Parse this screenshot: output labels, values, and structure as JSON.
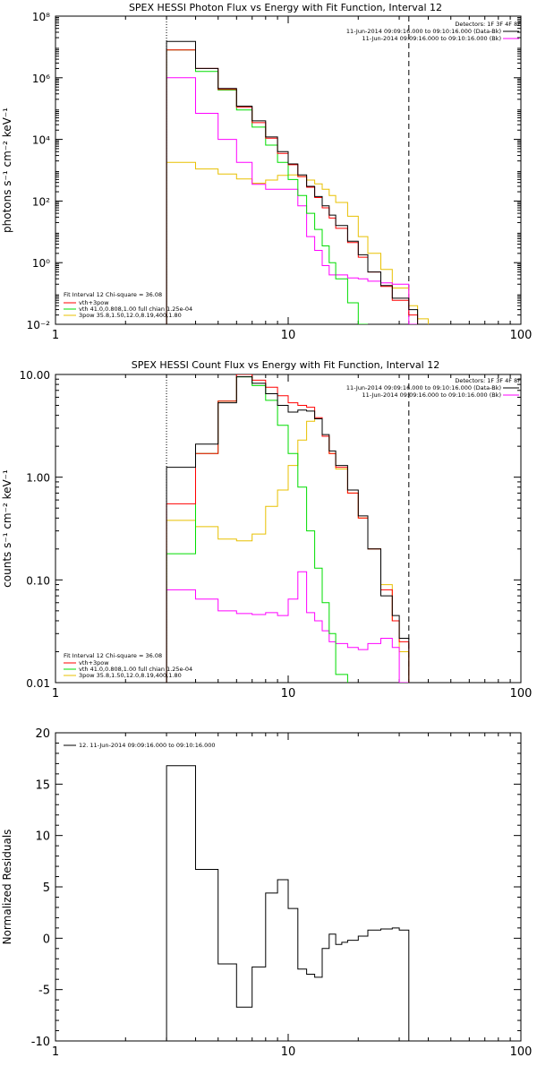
{
  "colors": {
    "black": "#000000",
    "red": "#ff0000",
    "green": "#00dd00",
    "magenta": "#ff00ff",
    "orange": "#e8c000"
  },
  "chart_data": [
    {
      "type": "line",
      "title": "SPEX HESSI Photon Flux vs Energy with Fit Function, Interval 12",
      "ylabel": "photons s⁻¹ cm⁻² keV⁻¹",
      "xlabel": "",
      "x_scale": "log",
      "y_scale": "log",
      "xlim": [
        1,
        100
      ],
      "ylim": [
        0.01,
        100000000
      ],
      "x_ticks": [
        "1",
        "10",
        "100"
      ],
      "y_ticks": [
        "10⁻²",
        "10⁰",
        "10²",
        "10⁴",
        "10⁶",
        "10⁸"
      ],
      "vline_dotted": 3,
      "vline_dashed": 33,
      "legend_header": "Detectors: 1F 3F 4F 8F",
      "legend_top": [
        {
          "label": "11-Jun-2014 09:09:16.000 to 09:10:16.000 (Data-Bk)",
          "color": "#000000"
        },
        {
          "label": "11-Jun-2014 09:09:16.000 to 09:10:16.000 (Bk)",
          "color": "#ff00ff"
        }
      ],
      "legend_fit_header": "Fit Interval 12   Chi-square = 36.08",
      "legend_fit": [
        {
          "label": "vth+3pow",
          "color": "#ff0000"
        },
        {
          "label": "vth 41.0,0.808,1.00  full chian 1.25e-04",
          "color": "#00dd00"
        },
        {
          "label": "3pow 35.8,1.50,12.0,8.19,400,1.80",
          "color": "#e8c000"
        }
      ],
      "bin_edges": [
        3,
        4,
        5,
        6,
        7,
        8,
        9,
        10,
        11,
        12,
        13,
        14,
        15,
        16,
        18,
        20,
        22,
        25,
        28,
        33,
        36,
        40
      ],
      "series": [
        {
          "name": "Data-Bk",
          "color": "#000000",
          "values": [
            15000000,
            2000000,
            450000,
            120000,
            40000,
            12000,
            4000,
            1600,
            700,
            300,
            140,
            70,
            35,
            16,
            5,
            1.8,
            0.5,
            0.18,
            0.07,
            0.03,
            null
          ]
        },
        {
          "name": "vth+3pow",
          "color": "#ff0000",
          "values": [
            8000000,
            2000000,
            420000,
            110000,
            35000,
            11000,
            3500,
            1500,
            620,
            280,
            130,
            60,
            28,
            13,
            4.5,
            1.5,
            0.5,
            0.17,
            0.06,
            0.02,
            null
          ]
        },
        {
          "name": "vth",
          "color": "#00dd00",
          "values": [
            8000000,
            1600000,
            400000,
            90000,
            25000,
            6500,
            1800,
            500,
            150,
            40,
            12,
            3.5,
            1.0,
            0.3,
            0.05,
            0.008,
            null,
            null,
            null,
            null,
            null
          ]
        },
        {
          "name": "3pow",
          "color": "#e8c000",
          "values": [
            1800,
            1100,
            750,
            520,
            380,
            480,
            680,
            700,
            620,
            480,
            360,
            240,
            150,
            90,
            32,
            7,
            2,
            0.6,
            0.15,
            0.04,
            0.015
          ]
        },
        {
          "name": "Bk",
          "color": "#ff00ff",
          "values": [
            1000000,
            70000,
            10000,
            1800,
            350,
            240,
            240,
            240,
            70,
            7,
            2.5,
            0.8,
            0.4,
            0.4,
            0.32,
            0.3,
            0.25,
            0.22,
            0.2,
            0.009,
            null
          ]
        }
      ]
    },
    {
      "type": "line",
      "title": "SPEX HESSI Count Flux vs Energy with Fit Function, Interval 12",
      "ylabel": "counts s⁻¹ cm⁻² keV⁻¹",
      "xlabel": "",
      "x_scale": "log",
      "y_scale": "log",
      "xlim": [
        1,
        100
      ],
      "ylim": [
        0.01,
        10
      ],
      "x_ticks": [
        "1",
        "10",
        "100"
      ],
      "y_ticks": [
        "0.01",
        "0.10",
        "1.00",
        "10.00"
      ],
      "vline_dotted": 3,
      "vline_dashed": 33,
      "legend_header": "Detectors: 1F 3F 4F 8F",
      "legend_top": [
        {
          "label": "11-Jun-2014 09:09:16.000 to 09:10:16.000 (Data-Bk)",
          "color": "#000000"
        },
        {
          "label": "11-Jun-2014 09:09:16.000 to 09:10:16.000 (Bk)",
          "color": "#ff00ff"
        }
      ],
      "legend_fit_header": "Fit Interval 12   Chi-square = 36.08",
      "legend_fit": [
        {
          "label": "vth+3pow",
          "color": "#ff0000"
        },
        {
          "label": "vth 41.0,0.808,1.00  full chian 1.25e-04",
          "color": "#00dd00"
        },
        {
          "label": "3pow 35.8,1.50,12.0,8.19,400,1.80",
          "color": "#e8c000"
        }
      ],
      "bin_edges": [
        3,
        4,
        5,
        6,
        7,
        8,
        9,
        10,
        11,
        12,
        13,
        14,
        15,
        16,
        18,
        20,
        22,
        25,
        28,
        30,
        33
      ],
      "series": [
        {
          "name": "Data-Bk",
          "color": "#000000",
          "values": [
            1.25,
            2.1,
            5.3,
            9.5,
            8.2,
            6.5,
            5.0,
            4.3,
            4.5,
            4.4,
            3.7,
            2.6,
            1.8,
            1.3,
            0.75,
            0.42,
            0.2,
            0.07,
            0.045,
            0.027
          ]
        },
        {
          "name": "vth+3pow",
          "color": "#ff0000",
          "values": [
            0.55,
            1.7,
            5.5,
            10.0,
            8.8,
            7.5,
            6.2,
            5.3,
            5.0,
            4.8,
            3.8,
            2.5,
            1.7,
            1.25,
            0.7,
            0.4,
            0.2,
            0.08,
            0.04,
            0.025
          ]
        },
        {
          "name": "vth",
          "color": "#00dd00",
          "values": [
            0.18,
            1.7,
            5.5,
            9.5,
            7.8,
            5.6,
            3.2,
            1.7,
            0.8,
            0.3,
            0.13,
            0.06,
            0.03,
            0.012,
            null,
            null,
            null,
            null,
            null,
            null
          ]
        },
        {
          "name": "3pow",
          "color": "#e8c000",
          "values": [
            0.38,
            0.33,
            0.25,
            0.24,
            0.28,
            0.52,
            0.75,
            1.3,
            2.3,
            3.5,
            3.7,
            2.5,
            1.7,
            1.2,
            0.7,
            0.4,
            0.2,
            0.09,
            0.04,
            0.02
          ]
        },
        {
          "name": "Bk",
          "color": "#ff00ff",
          "values": [
            0.08,
            0.065,
            0.05,
            0.047,
            0.046,
            0.048,
            0.045,
            0.065,
            0.12,
            0.048,
            0.04,
            0.032,
            0.025,
            0.024,
            0.022,
            0.021,
            0.024,
            0.027,
            0.022,
            0.008
          ]
        }
      ]
    },
    {
      "type": "line",
      "title": "",
      "ylabel": "Normalized Residuals",
      "xlabel": "",
      "x_scale": "log",
      "y_scale": "linear",
      "xlim": [
        1,
        100
      ],
      "ylim": [
        -10,
        20
      ],
      "x_ticks": [
        "1",
        "10",
        "100"
      ],
      "y_ticks": [
        "-10",
        "-5",
        "0",
        "5",
        "10",
        "15",
        "20"
      ],
      "legend_top": [
        {
          "label": "12. 11-Jun-2014 09:09:16.000 to 09:10:16.000",
          "color": "#000000"
        }
      ],
      "bin_edges": [
        3,
        4,
        5,
        6,
        7,
        8,
        9,
        10,
        11,
        12,
        13,
        14,
        15,
        16,
        17,
        18,
        20,
        22,
        25,
        28,
        30,
        33
      ],
      "series": [
        {
          "name": "",
          "color": "#000000",
          "values": [
            16.8,
            6.7,
            -2.5,
            -6.7,
            -2.8,
            4.4,
            5.7,
            2.9,
            -3.0,
            -3.5,
            -3.8,
            -1.0,
            0.4,
            -0.6,
            -0.4,
            -0.2,
            0.2,
            0.8,
            0.9,
            1.0,
            0.8
          ]
        }
      ]
    }
  ]
}
